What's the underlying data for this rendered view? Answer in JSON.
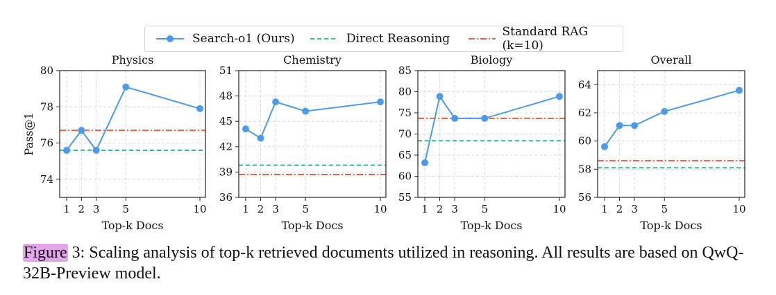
{
  "legend": {
    "items": [
      {
        "label": "Search-o1 (Ours)",
        "color": "#4c9be8",
        "style": "solid-marker"
      },
      {
        "label": "Direct Reasoning",
        "color": "#2fbf8f",
        "style": "dashed"
      },
      {
        "label": "Standard RAG (k=10)",
        "color": "#e0603f",
        "style": "dashdot"
      }
    ]
  },
  "caption": {
    "figure_word": "Figure",
    "text": " 3: Scaling analysis of top-k retrieved documents utilized in reasoning. All results are based on QwQ-32B-Preview model."
  },
  "chart_data": [
    {
      "type": "line",
      "title": "Physics",
      "xlabel": "Top-k Docs",
      "ylabel": "Pass@1",
      "x": [
        1,
        2,
        3,
        5,
        10
      ],
      "xticks": [
        1,
        2,
        3,
        5,
        10
      ],
      "ylim": [
        73.0,
        80.0
      ],
      "yticks": [
        74,
        76,
        78,
        80
      ],
      "grid": true,
      "series": [
        {
          "name": "Search-o1 (Ours)",
          "values": [
            75.6,
            76.7,
            75.6,
            79.1,
            77.9
          ]
        }
      ],
      "baselines": [
        {
          "name": "Direct Reasoning",
          "value": 75.6
        },
        {
          "name": "Standard RAG (k=10)",
          "value": 76.7
        }
      ]
    },
    {
      "type": "line",
      "title": "Chemistry",
      "xlabel": "Top-k Docs",
      "ylabel": "",
      "x": [
        1,
        2,
        3,
        5,
        10
      ],
      "xticks": [
        1,
        2,
        3,
        5,
        10
      ],
      "ylim": [
        36,
        51
      ],
      "yticks": [
        36,
        39,
        42,
        45,
        48,
        51
      ],
      "grid": true,
      "series": [
        {
          "name": "Search-o1 (Ours)",
          "values": [
            44.1,
            43.0,
            47.3,
            46.2,
            47.3
          ]
        }
      ],
      "baselines": [
        {
          "name": "Direct Reasoning",
          "value": 39.8
        },
        {
          "name": "Standard RAG (k=10)",
          "value": 38.7
        }
      ]
    },
    {
      "type": "line",
      "title": "Biology",
      "xlabel": "Top-k Docs",
      "ylabel": "",
      "x": [
        1,
        2,
        3,
        5,
        10
      ],
      "xticks": [
        1,
        2,
        3,
        5,
        10
      ],
      "ylim": [
        55,
        85
      ],
      "yticks": [
        55,
        60,
        65,
        70,
        75,
        80,
        85
      ],
      "grid": true,
      "series": [
        {
          "name": "Search-o1 (Ours)",
          "values": [
            63.2,
            78.9,
            73.7,
            73.7,
            78.9
          ]
        }
      ],
      "baselines": [
        {
          "name": "Direct Reasoning",
          "value": 68.4
        },
        {
          "name": "Standard RAG (k=10)",
          "value": 73.7
        }
      ]
    },
    {
      "type": "line",
      "title": "Overall",
      "xlabel": "Top-k Docs",
      "ylabel": "",
      "x": [
        1,
        2,
        3,
        5,
        10
      ],
      "xticks": [
        1,
        2,
        3,
        5,
        10
      ],
      "ylim": [
        56,
        65
      ],
      "yticks": [
        56,
        58,
        60,
        62,
        64
      ],
      "grid": true,
      "series": [
        {
          "name": "Search-o1 (Ours)",
          "values": [
            59.6,
            61.1,
            61.1,
            62.1,
            63.6
          ]
        }
      ],
      "baselines": [
        {
          "name": "Direct Reasoning",
          "value": 58.1
        },
        {
          "name": "Standard RAG (k=10)",
          "value": 58.6
        }
      ]
    }
  ]
}
